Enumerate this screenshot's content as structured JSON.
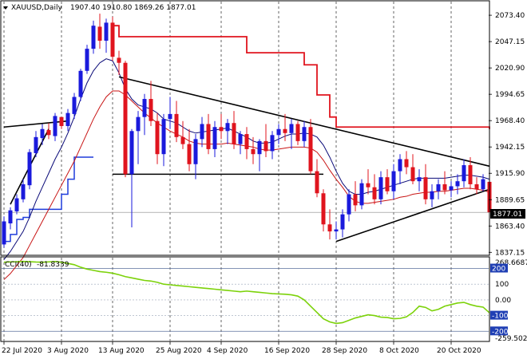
{
  "header": {
    "symbol_label": "XAUUSD,Daily",
    "ohlc_label": "1907.40 1910.80 1869.26 1877.01"
  },
  "indicator_header": {
    "name_label": "CCI(40)",
    "value_label": "-81.8339"
  },
  "colors": {
    "bull_candle": "#1a1adc",
    "bear_candle": "#e0141e",
    "ma_fast": "#0a0a78",
    "ma_slow": "#c81414",
    "step_support": "#1e3cdc",
    "step_resistance": "#e0141e",
    "cci_line": "#7cd20a",
    "level_box_blue": "#1f3fb4",
    "current_price_box": "#000000"
  },
  "chart_data": [
    {
      "type": "candlestick",
      "symbol": "XAUUSD",
      "timeframe": "Daily",
      "y_ticks": [
        "2073.40",
        "2047.15",
        "2020.90",
        "1994.65",
        "1968.40",
        "1942.15",
        "1915.90",
        "1889.65",
        "1863.40",
        "1837.15"
      ],
      "ylim": [
        1835.0,
        2087.0
      ],
      "current_price": "1877.01",
      "x_ticks": [
        "22 Jul 2020",
        "3 Aug 2020",
        "13 Aug 2020",
        "25 Aug 2020",
        "4 Sep 2020",
        "16 Sep 2020",
        "28 Sep 2020",
        "8 Oct 2020",
        "20 Oct 2020"
      ],
      "x_tick_index": [
        0,
        9,
        17,
        26,
        34,
        43,
        52,
        61,
        70
      ],
      "bars": [
        [
          1845,
          1873,
          1842,
          1868
        ],
        [
          1866,
          1882,
          1860,
          1879
        ],
        [
          1878,
          1895,
          1875,
          1891
        ],
        [
          1890,
          1910,
          1887,
          1905
        ],
        [
          1904,
          1940,
          1900,
          1937
        ],
        [
          1936,
          1958,
          1932,
          1952
        ],
        [
          1951,
          1965,
          1944,
          1960
        ],
        [
          1959,
          1966,
          1950,
          1954
        ],
        [
          1953,
          1976,
          1948,
          1973
        ],
        [
          1972,
          1966,
          1960,
          1963
        ],
        [
          1963,
          1980,
          1958,
          1976
        ],
        [
          1975,
          1996,
          1970,
          1992
        ],
        [
          1992,
          2020,
          1988,
          2018
        ],
        [
          2018,
          2044,
          2015,
          2040
        ],
        [
          2040,
          2068,
          2035,
          2063
        ],
        [
          2062,
          2075,
          2040,
          2048
        ],
        [
          2048,
          2070,
          2036,
          2066
        ],
        [
          2066,
          2072,
          2028,
          2032
        ],
        [
          2031,
          2038,
          2014,
          2026
        ],
        [
          2026,
          2028,
          1912,
          1915
        ],
        [
          1915,
          1960,
          1862,
          1958
        ],
        [
          1958,
          1978,
          1925,
          1972
        ],
        [
          1972,
          1995,
          1954,
          1990
        ],
        [
          1990,
          2008,
          1963,
          1968
        ],
        [
          1968,
          1976,
          1925,
          1935
        ],
        [
          1935,
          1975,
          1923,
          1970
        ],
        [
          1970,
          1992,
          1960,
          1975
        ],
        [
          1975,
          1988,
          1947,
          1952
        ],
        [
          1952,
          1968,
          1940,
          1945
        ],
        [
          1945,
          1960,
          1918,
          1925
        ],
        [
          1925,
          1955,
          1910,
          1950
        ],
        [
          1950,
          1972,
          1942,
          1965
        ],
        [
          1965,
          1975,
          1935,
          1940
        ],
        [
          1940,
          1968,
          1932,
          1962
        ],
        [
          1962,
          1975,
          1950,
          1958
        ],
        [
          1958,
          1970,
          1945,
          1966
        ],
        [
          1966,
          1978,
          1940,
          1945
        ],
        [
          1945,
          1958,
          1935,
          1955
        ],
        [
          1955,
          1962,
          1930,
          1940
        ],
        [
          1940,
          1952,
          1925,
          1935
        ],
        [
          1935,
          1950,
          1918,
          1948
        ],
        [
          1948,
          1965,
          1932,
          1938
        ],
        [
          1938,
          1958,
          1930,
          1954
        ],
        [
          1954,
          1965,
          1945,
          1960
        ],
        [
          1960,
          1975,
          1948,
          1956
        ],
        [
          1956,
          1970,
          1940,
          1965
        ],
        [
          1965,
          1968,
          1944,
          1948
        ],
        [
          1948,
          1968,
          1942,
          1962
        ],
        [
          1962,
          1970,
          1915,
          1918
        ],
        [
          1918,
          1930,
          1892,
          1896
        ],
        [
          1896,
          1900,
          1858,
          1865
        ],
        [
          1865,
          1880,
          1850,
          1858
        ],
        [
          1858,
          1868,
          1850,
          1860
        ],
        [
          1860,
          1880,
          1852,
          1875
        ],
        [
          1875,
          1900,
          1868,
          1895
        ],
        [
          1895,
          1908,
          1878,
          1884
        ],
        [
          1884,
          1910,
          1880,
          1906
        ],
        [
          1906,
          1920,
          1895,
          1902
        ],
        [
          1902,
          1915,
          1885,
          1890
        ],
        [
          1890,
          1918,
          1885,
          1912
        ],
        [
          1912,
          1920,
          1895,
          1898
        ],
        [
          1898,
          1925,
          1890,
          1918
        ],
        [
          1918,
          1935,
          1905,
          1930
        ],
        [
          1930,
          1938,
          1915,
          1922
        ],
        [
          1922,
          1935,
          1905,
          1908
        ],
        [
          1908,
          1920,
          1898,
          1912
        ],
        [
          1912,
          1925,
          1885,
          1890
        ],
        [
          1890,
          1905,
          1882,
          1898
        ],
        [
          1898,
          1910,
          1890,
          1905
        ],
        [
          1905,
          1918,
          1895,
          1899
        ],
        [
          1899,
          1908,
          1892,
          1903
        ],
        [
          1903,
          1915,
          1895,
          1908
        ],
        [
          1908,
          1930,
          1902,
          1924
        ],
        [
          1924,
          1932,
          1900,
          1905
        ],
        [
          1905,
          1912,
          1895,
          1900
        ],
        [
          1900,
          1915,
          1898,
          1910
        ],
        [
          1907.4,
          1910.8,
          1869.26,
          1877.01
        ]
      ],
      "ma_fast": [
        1830,
        1838,
        1848,
        1858,
        1872,
        1888,
        1902,
        1916,
        1930,
        1942,
        1956,
        1972,
        1990,
        2006,
        2018,
        2026,
        2030,
        2028,
        2016,
        2000,
        1990,
        1984,
        1982,
        1980,
        1976,
        1970,
        1968,
        1966,
        1962,
        1958,
        1956,
        1957,
        1958,
        1959,
        1960,
        1961,
        1958,
        1955,
        1952,
        1948,
        1946,
        1946,
        1947,
        1950,
        1953,
        1955,
        1955,
        1956,
        1955,
        1952,
        1944,
        1932,
        1918,
        1906,
        1898,
        1895,
        1895,
        1897,
        1898,
        1900,
        1902,
        1904,
        1906,
        1908,
        1910,
        1911,
        1911,
        1911,
        1911,
        1911,
        1912,
        1913,
        1914,
        1914,
        1913,
        1912,
        1910
      ],
      "ma_slow": [
        1810,
        1816,
        1824,
        1832,
        1844,
        1856,
        1868,
        1880,
        1892,
        1904,
        1916,
        1928,
        1942,
        1956,
        1970,
        1982,
        1992,
        1998,
        1998,
        1994,
        1988,
        1982,
        1976,
        1971,
        1966,
        1962,
        1958,
        1955,
        1952,
        1948,
        1946,
        1945,
        1945,
        1945,
        1945,
        1946,
        1945,
        1944,
        1943,
        1942,
        1940,
        1939,
        1939,
        1940,
        1941,
        1942,
        1942,
        1942,
        1941,
        1937,
        1929,
        1919,
        1910,
        1902,
        1893,
        1888,
        1886,
        1886,
        1887,
        1888,
        1889,
        1890,
        1892,
        1893,
        1895,
        1896,
        1897,
        1897,
        1898,
        1898,
        1899,
        1900,
        1901,
        1901,
        1900,
        1899,
        1897
      ],
      "support_step": [
        [
          0,
          1848
        ],
        [
          1,
          1855
        ],
        [
          2,
          1870
        ],
        [
          3,
          1872
        ],
        [
          4,
          1880
        ],
        [
          5,
          1880
        ],
        [
          6,
          1880
        ],
        [
          7,
          1880
        ],
        [
          8,
          1880
        ],
        [
          9,
          1895
        ],
        [
          10,
          1910
        ],
        [
          11,
          1932
        ],
        [
          12,
          1932
        ],
        [
          13,
          1932
        ],
        [
          14,
          1932
        ]
      ],
      "resistance_step": [
        [
          17,
          2063
        ],
        [
          18,
          2052
        ],
        [
          19,
          2052
        ],
        [
          37,
          2052
        ],
        [
          38,
          2036
        ],
        [
          46,
          2036
        ],
        [
          47,
          2024
        ],
        [
          48,
          2024
        ],
        [
          49,
          1994
        ],
        [
          50,
          1994
        ],
        [
          51,
          1972
        ],
        [
          52,
          1962
        ],
        [
          76,
          1960
        ]
      ],
      "trend_lines": [
        {
          "from": [
            18,
            2012
          ],
          "to": [
            76,
            1923
          ]
        },
        {
          "from": [
            52,
            1848
          ],
          "to": [
            76,
            1900
          ]
        },
        {
          "from": [
            17,
            1915
          ],
          "to": [
            50,
            1915
          ]
        },
        {
          "from": [
            0,
            1962
          ],
          "to": [
            10,
            1968
          ]
        },
        {
          "from": [
            1,
            1885
          ],
          "to": [
            7,
            1960
          ]
        }
      ]
    },
    {
      "type": "line",
      "name": "CCI(40)",
      "y_ticks": [
        "268.6687",
        "200",
        "100",
        "0.00",
        "-100",
        "-200",
        "-259.5024"
      ],
      "ylim": [
        -259.5024,
        268.6687
      ],
      "last_value": "-81.8339",
      "values": [
        240,
        242,
        243,
        245,
        243,
        241,
        240,
        242,
        244,
        240,
        232,
        224,
        208,
        196,
        188,
        180,
        176,
        170,
        160,
        148,
        140,
        132,
        124,
        120,
        112,
        100,
        96,
        92,
        88,
        84,
        80,
        76,
        72,
        68,
        64,
        60,
        56,
        52,
        56,
        52,
        48,
        44,
        40,
        38,
        36,
        32,
        24,
        0,
        -40,
        -80,
        -120,
        -140,
        -150,
        -145,
        -130,
        -115,
        -105,
        -95,
        -100,
        -110,
        -112,
        -120,
        -118,
        -108,
        -80,
        -40,
        -48,
        -70,
        -60,
        -40,
        -30,
        -20,
        -16,
        -30,
        -40,
        -46,
        -82
      ]
    }
  ]
}
